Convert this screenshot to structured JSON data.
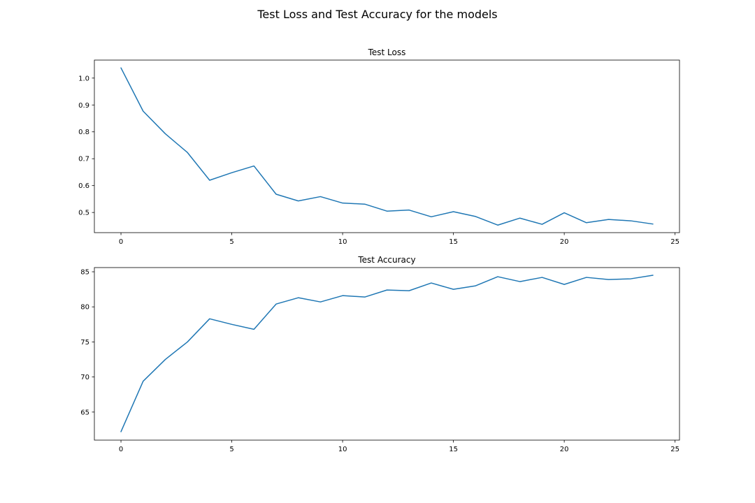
{
  "figure": {
    "title": "Test Loss and Test Accuracy for the models"
  },
  "chart_data": [
    {
      "type": "line",
      "title": "Test Loss",
      "xlabel": "",
      "ylabel": "",
      "xlim": [
        -1.2,
        25.2
      ],
      "ylim": [
        0.425,
        1.067
      ],
      "xticks": [
        0,
        5,
        10,
        15,
        20,
        25
      ],
      "xtick_labels": [
        "0",
        "5",
        "10",
        "15",
        "20",
        "25"
      ],
      "yticks": [
        0.5,
        0.6,
        0.7,
        0.8,
        0.9,
        1.0
      ],
      "ytick_labels": [
        "0.5",
        "0.6",
        "0.7",
        "0.8",
        "0.9",
        "1.0"
      ],
      "grid": false,
      "color": "#1f77b4",
      "x": [
        0,
        1,
        2,
        3,
        4,
        5,
        6,
        7,
        8,
        9,
        10,
        11,
        12,
        13,
        14,
        15,
        16,
        17,
        18,
        19,
        20,
        21,
        22,
        23,
        24
      ],
      "values": [
        1.038,
        0.877,
        0.793,
        0.723,
        0.62,
        0.648,
        0.673,
        0.568,
        0.543,
        0.559,
        0.535,
        0.531,
        0.505,
        0.509,
        0.484,
        0.503,
        0.485,
        0.453,
        0.479,
        0.456,
        0.499,
        0.462,
        0.474,
        0.469,
        0.457
      ]
    },
    {
      "type": "line",
      "title": "Test Accuracy",
      "xlabel": "",
      "ylabel": "",
      "xlim": [
        -1.2,
        25.2
      ],
      "ylim": [
        61.0,
        85.6
      ],
      "xticks": [
        0,
        5,
        10,
        15,
        20,
        25
      ],
      "xtick_labels": [
        "0",
        "5",
        "10",
        "15",
        "20",
        "25"
      ],
      "yticks": [
        65,
        70,
        75,
        80,
        85
      ],
      "ytick_labels": [
        "65",
        "70",
        "75",
        "80",
        "85"
      ],
      "grid": false,
      "color": "#1f77b4",
      "x": [
        0,
        1,
        2,
        3,
        4,
        5,
        6,
        7,
        8,
        9,
        10,
        11,
        12,
        13,
        14,
        15,
        16,
        17,
        18,
        19,
        20,
        21,
        22,
        23,
        24
      ],
      "values": [
        62.2,
        69.4,
        72.5,
        75.0,
        78.3,
        77.5,
        76.8,
        80.4,
        81.3,
        80.7,
        81.6,
        81.4,
        82.4,
        82.3,
        83.4,
        82.5,
        83.0,
        84.3,
        83.6,
        84.2,
        83.2,
        84.2,
        83.9,
        84.0,
        84.5
      ]
    }
  ]
}
